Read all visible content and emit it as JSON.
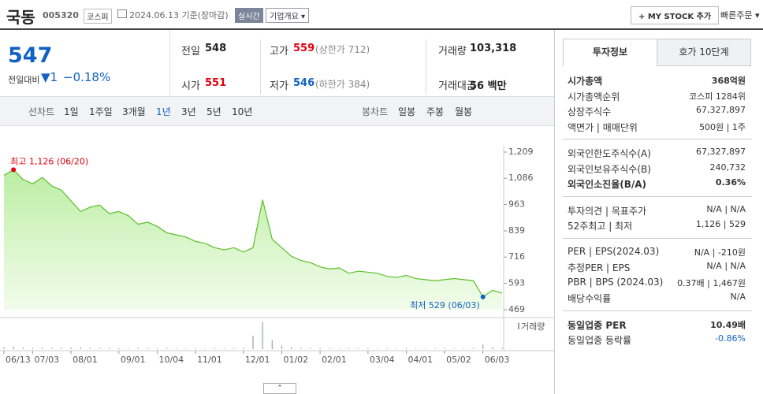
{
  "header": {
    "name": "국동",
    "code": "005320",
    "market": "코스피",
    "date": "2024.06.13 기준(장마감)",
    "status": "실시간",
    "company": "기업개요",
    "mystock": "+ MY STOCK 추가",
    "quick": "빠른주문"
  },
  "quote": {
    "price": 547,
    "change_label": "전일대비",
    "change": "1",
    "change_pct": "−0.18%",
    "items": [
      {
        "label": "전일",
        "value": "548"
      },
      {
        "label": "고가",
        "value": "559",
        "extra": "(상한가 712)"
      },
      {
        "label": "거래량",
        "value": "103,318"
      },
      {
        "label": "시가",
        "value": "551"
      },
      {
        "label": "저가",
        "value": "546",
        "extra": "(하한가 384)"
      },
      {
        "label": "거래대금",
        "value": "56 백만"
      }
    ]
  },
  "tabs": {
    "line_label": "선차트",
    "line_periods": [
      "1일",
      "1주일",
      "3개월",
      "1년",
      "3년",
      "5년",
      "10년"
    ],
    "candle_label": "봉차트",
    "candle_periods": [
      "일봉",
      "주봉",
      "월봉"
    ]
  },
  "info": {
    "tabs": [
      "투자정보",
      "호가 10단계"
    ],
    "groups": [
      [
        {
          "label": "시가총액",
          "value": "368억원"
        },
        {
          "label": "시가총액순위",
          "value": "코스피 1284위"
        },
        {
          "label": "상장주식수",
          "value": "67,327,897"
        },
        {
          "label": "액면가 | 매매단위",
          "value": "500원 | 1주"
        }
      ],
      [
        {
          "label": "외국인한도주식수(A)",
          "value": "67,327,897"
        },
        {
          "label": "외국인보유주식수(B)",
          "value": "240,732"
        },
        {
          "label": "외국인소진율(B/A)",
          "value": "0.36%"
        }
      ],
      [
        {
          "label": "투자의견 | 목표주가",
          "value": "N/A | N/A"
        },
        {
          "label": "52주최고 | 최저",
          "value": "1,126 | 529"
        }
      ],
      [
        {
          "label": "PER | EPS(2024.03)",
          "value": "N/A | -210원"
        },
        {
          "label": "추정PER | EPS",
          "value": "N/A | N/A"
        },
        {
          "label": "PBR | BPS (2024.03)",
          "value": "0.37배 | 1,467원"
        },
        {
          "label": "배당수익률",
          "value": "N/A"
        }
      ],
      [
        {
          "label": "동일업종 PER",
          "value": "10.49배"
        },
        {
          "label": "동일업종 등락률",
          "value": "-0.86%"
        }
      ]
    ]
  },
  "chart_data": {
    "type": "line",
    "color": "#5cbf2a",
    "categories": [
      "06/13",
      null,
      null,
      "07/03",
      null,
      null,
      null,
      "08/01",
      null,
      null,
      null,
      null,
      "09/01",
      null,
      null,
      null,
      "10/04",
      null,
      null,
      null,
      "11/01",
      null,
      null,
      null,
      null,
      "12/01",
      null,
      null,
      null,
      "01/02",
      null,
      null,
      null,
      "02/01",
      null,
      null,
      null,
      null,
      "03/04",
      null,
      null,
      null,
      "04/01",
      null,
      null,
      null,
      "05/02",
      null,
      null,
      null,
      "06/03",
      null,
      null
    ],
    "values": [
      1100,
      1126,
      1080,
      1060,
      1090,
      1050,
      1030,
      980,
      930,
      950,
      960,
      920,
      930,
      910,
      870,
      880,
      860,
      830,
      820,
      810,
      790,
      780,
      760,
      750,
      760,
      740,
      760,
      985,
      800,
      760,
      720,
      700,
      690,
      670,
      660,
      665,
      640,
      650,
      645,
      640,
      625,
      620,
      630,
      615,
      610,
      605,
      610,
      615,
      610,
      605,
      529,
      560,
      547
    ],
    "ylim": [
      469,
      1209
    ],
    "yticks": [
      469,
      593,
      716,
      839,
      963,
      {
        "value": 1086,
        "label": "1,086"
      },
      {
        "value": 1209,
        "label": "1,209"
      }
    ],
    "annotations": [
      {
        "label": "최고 1,126 (06/20)",
        "value": 1126,
        "color": "#e0000f"
      },
      {
        "label": "최저 529 (06/03)",
        "value": 529,
        "color": "#1261c4"
      }
    ],
    "volume": {
      "name": "거래량",
      "color": "#9aa0b0",
      "ylim": [
        0,
        1000000
      ],
      "values": [
        60000,
        90000,
        50000,
        40000,
        45000,
        40000,
        35000,
        50000,
        60000,
        40000,
        35000,
        30000,
        30000,
        25000,
        40000,
        30000,
        25000,
        30000,
        25000,
        20000,
        25000,
        20000,
        30000,
        25000,
        30000,
        35000,
        450000,
        900000,
        300000,
        120000,
        60000,
        40000,
        35000,
        30000,
        25000,
        20000,
        30000,
        25000,
        20000,
        20000,
        25000,
        20000,
        20000,
        30000,
        20000,
        20000,
        25000,
        20000,
        20000,
        30000,
        150000,
        60000,
        40000
      ]
    }
  }
}
